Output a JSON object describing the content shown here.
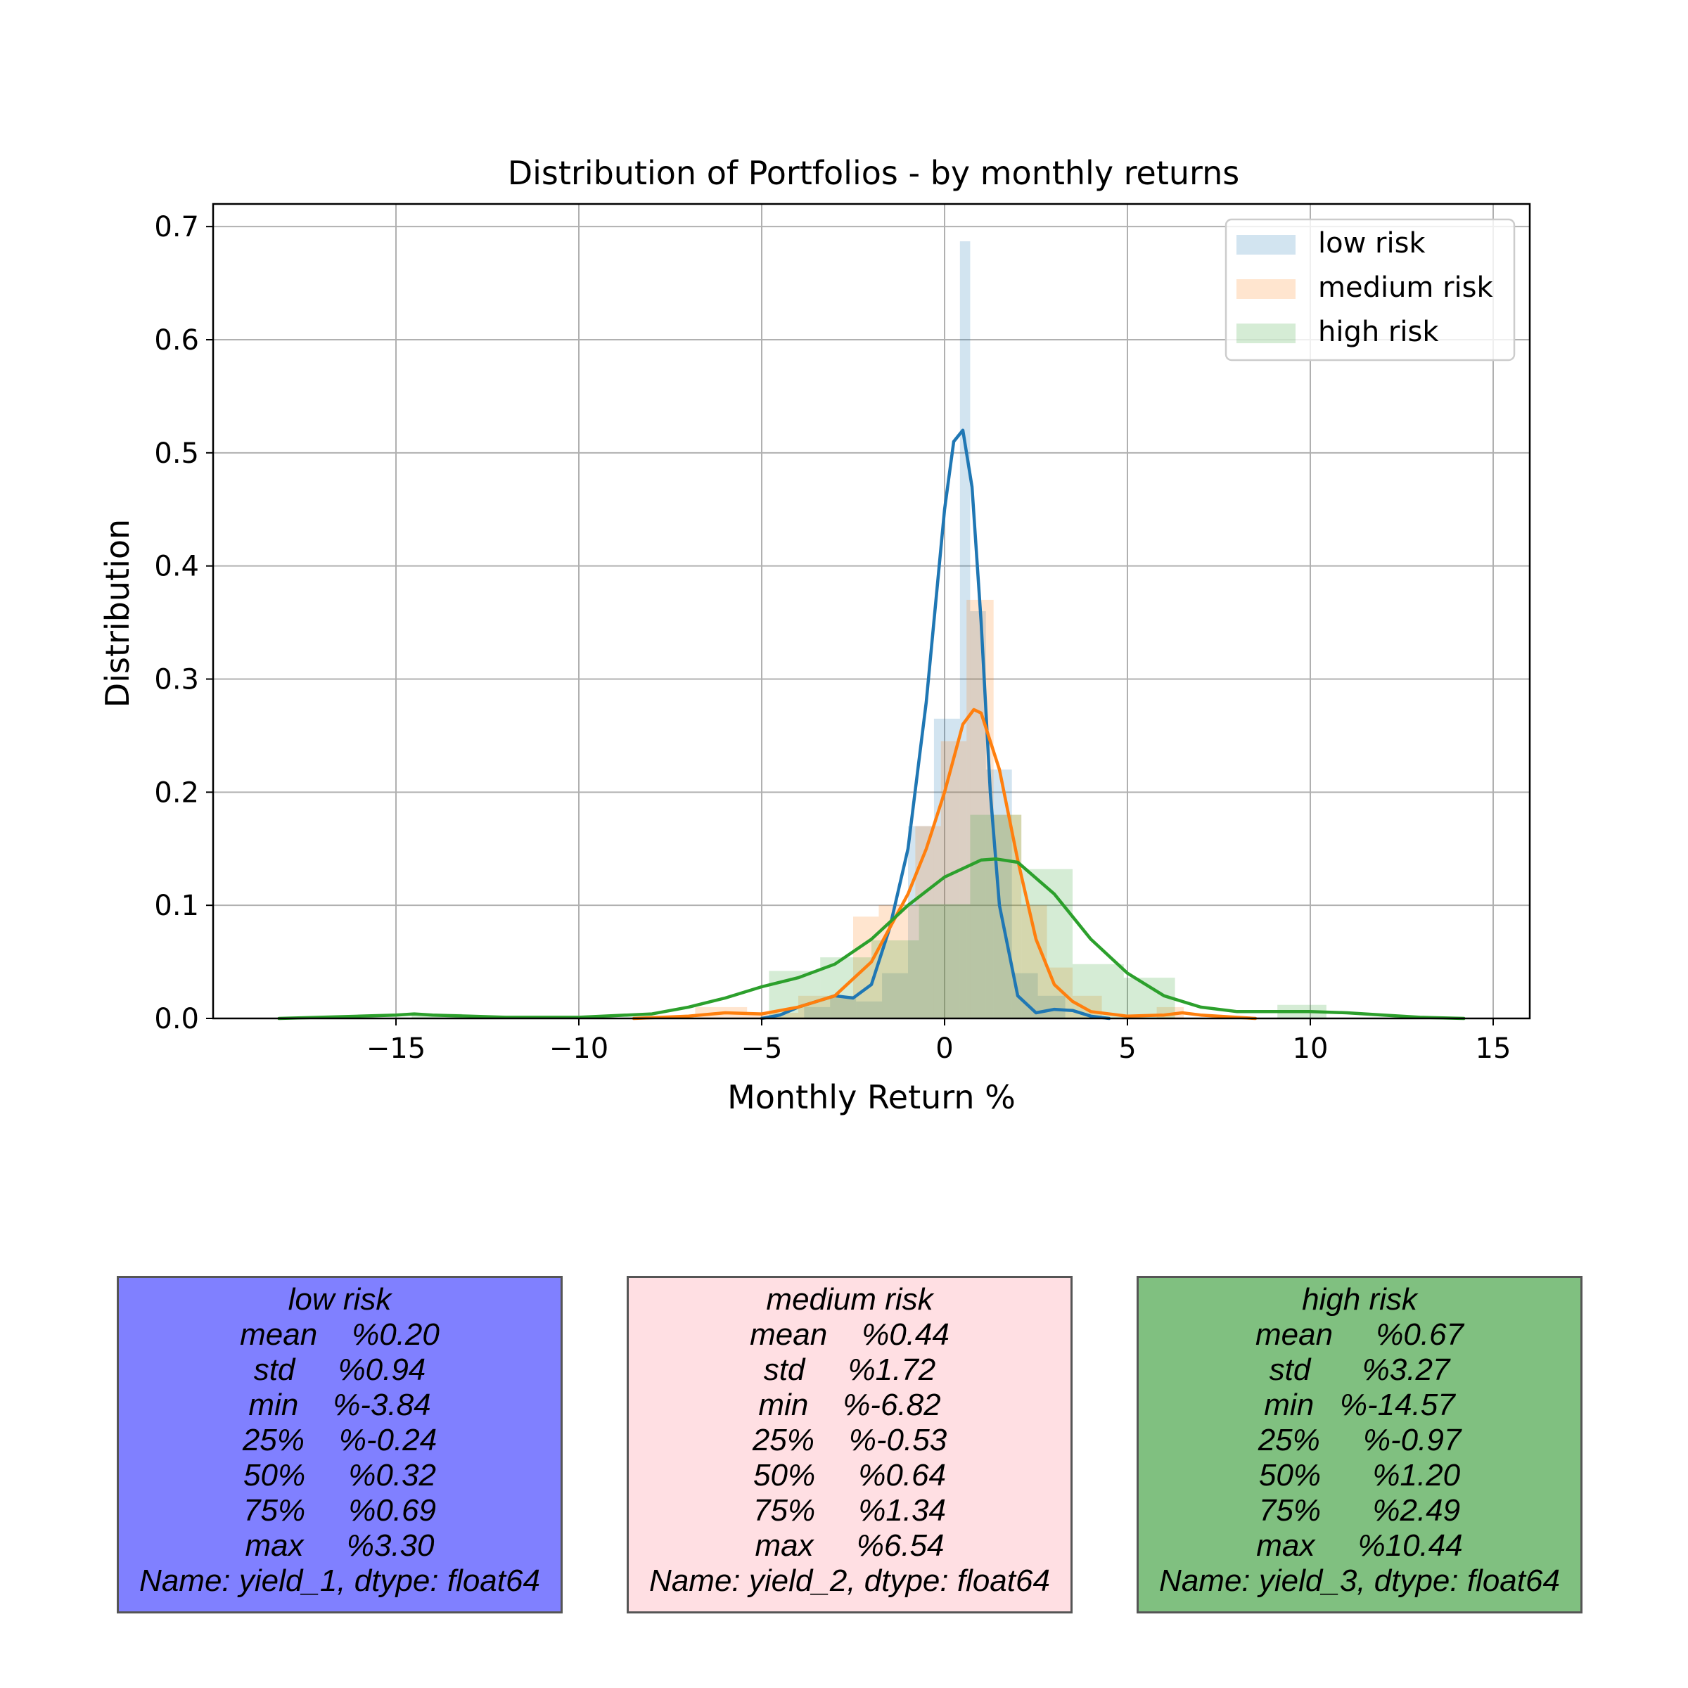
{
  "chart_data": {
    "type": "histogram+kde",
    "title": "Distribution of Portfolios - by monthly returns",
    "xlabel": "Monthly Return %",
    "ylabel": "Distribution",
    "xlim": [
      -20,
      16
    ],
    "ylim": [
      0,
      0.72
    ],
    "xticks": [
      -15,
      -10,
      -5,
      0,
      5,
      10,
      15
    ],
    "xtick_labels": [
      "−15",
      "−10",
      "−5",
      "0",
      "5",
      "10",
      "15"
    ],
    "yticks": [
      0.0,
      0.1,
      0.2,
      0.3,
      0.4,
      0.5,
      0.6,
      0.7
    ],
    "ytick_labels": [
      "0.0",
      "0.1",
      "0.2",
      "0.3",
      "0.4",
      "0.5",
      "0.6",
      "0.7"
    ],
    "grid": true,
    "legend_position": "top-right",
    "series": [
      {
        "name": "low risk",
        "color": "#1f77b4",
        "hist": [
          {
            "x0": -3.84,
            "x1": -3.13,
            "y": 0.01
          },
          {
            "x0": -3.13,
            "x1": -2.42,
            "y": 0.02
          },
          {
            "x0": -2.42,
            "x1": -1.71,
            "y": 0.015
          },
          {
            "x0": -1.71,
            "x1": -1.0,
            "y": 0.04
          },
          {
            "x0": -1.0,
            "x1": -0.29,
            "y": 0.17
          },
          {
            "x0": -0.29,
            "x1": 0.42,
            "y": 0.265
          },
          {
            "x0": 0.42,
            "x1": 0.7,
            "y": 0.687
          },
          {
            "x0": 0.7,
            "x1": 1.13,
            "y": 0.36
          },
          {
            "x0": 1.13,
            "x1": 1.84,
            "y": 0.22
          },
          {
            "x0": 1.84,
            "x1": 2.55,
            "y": 0.04
          },
          {
            "x0": 2.55,
            "x1": 3.3,
            "y": 0.02
          }
        ],
        "kde_x": [
          -5,
          -4.5,
          -4,
          -3.5,
          -3,
          -2.5,
          -2,
          -1.5,
          -1,
          -0.5,
          0,
          0.25,
          0.5,
          0.75,
          1,
          1.25,
          1.5,
          2,
          2.5,
          3,
          3.5,
          4,
          4.5
        ],
        "kde_y": [
          0.0,
          0.003,
          0.01,
          0.015,
          0.02,
          0.018,
          0.03,
          0.08,
          0.15,
          0.28,
          0.45,
          0.51,
          0.52,
          0.47,
          0.35,
          0.2,
          0.1,
          0.02,
          0.005,
          0.008,
          0.007,
          0.002,
          0.0
        ]
      },
      {
        "name": "medium risk",
        "color": "#ff7f0e",
        "hist": [
          {
            "x0": -6.82,
            "x1": -5.4,
            "y": 0.01
          },
          {
            "x0": -5.4,
            "x1": -4.0,
            "y": 0.005
          },
          {
            "x0": -4.0,
            "x1": -2.5,
            "y": 0.02
          },
          {
            "x0": -2.5,
            "x1": -1.8,
            "y": 0.09
          },
          {
            "x0": -1.8,
            "x1": -0.8,
            "y": 0.1
          },
          {
            "x0": -0.8,
            "x1": -0.1,
            "y": 0.17
          },
          {
            "x0": -0.1,
            "x1": 0.6,
            "y": 0.245
          },
          {
            "x0": 0.6,
            "x1": 1.34,
            "y": 0.37
          },
          {
            "x0": 1.34,
            "x1": 2.1,
            "y": 0.18
          },
          {
            "x0": 2.1,
            "x1": 2.8,
            "y": 0.1
          },
          {
            "x0": 2.8,
            "x1": 3.5,
            "y": 0.045
          },
          {
            "x0": 3.5,
            "x1": 4.3,
            "y": 0.02
          },
          {
            "x0": 5.8,
            "x1": 6.54,
            "y": 0.01
          }
        ],
        "kde_x": [
          -8.5,
          -7,
          -6,
          -5,
          -4,
          -3,
          -2,
          -1.5,
          -1,
          -0.5,
          0,
          0.5,
          0.8,
          1,
          1.5,
          2,
          2.5,
          3,
          3.5,
          4,
          5,
          6,
          6.5,
          7,
          8.5
        ],
        "kde_y": [
          0.0,
          0.002,
          0.005,
          0.004,
          0.01,
          0.02,
          0.05,
          0.08,
          0.11,
          0.15,
          0.2,
          0.26,
          0.273,
          0.27,
          0.22,
          0.14,
          0.07,
          0.03,
          0.015,
          0.006,
          0.002,
          0.003,
          0.005,
          0.003,
          0.0
        ]
      },
      {
        "name": "high risk",
        "color": "#2ca02c",
        "hist": [
          {
            "x0": -14.57,
            "x1": -13.2,
            "y": 0.004
          },
          {
            "x0": -4.8,
            "x1": -3.4,
            "y": 0.042
          },
          {
            "x0": -3.4,
            "x1": -2.0,
            "y": 0.054
          },
          {
            "x0": -2.0,
            "x1": -0.7,
            "y": 0.069
          },
          {
            "x0": -0.7,
            "x1": 0.7,
            "y": 0.101
          },
          {
            "x0": 0.7,
            "x1": 2.1,
            "y": 0.18
          },
          {
            "x0": 2.1,
            "x1": 3.5,
            "y": 0.132
          },
          {
            "x0": 3.5,
            "x1": 4.9,
            "y": 0.048
          },
          {
            "x0": 4.9,
            "x1": 6.3,
            "y": 0.036
          },
          {
            "x0": 9.1,
            "x1": 10.44,
            "y": 0.012
          }
        ],
        "kde_x": [
          -18.2,
          -16,
          -15,
          -14.5,
          -14,
          -13,
          -12,
          -10,
          -8,
          -7,
          -6,
          -5,
          -4,
          -3,
          -2,
          -1,
          0,
          1,
          1.4,
          2,
          3,
          4,
          5,
          6,
          7,
          8,
          9,
          10,
          11,
          12,
          13,
          14.2
        ],
        "kde_y": [
          0.0,
          0.002,
          0.003,
          0.004,
          0.003,
          0.002,
          0.001,
          0.001,
          0.004,
          0.01,
          0.018,
          0.028,
          0.036,
          0.048,
          0.07,
          0.1,
          0.125,
          0.14,
          0.141,
          0.138,
          0.11,
          0.07,
          0.04,
          0.02,
          0.01,
          0.006,
          0.006,
          0.006,
          0.005,
          0.003,
          0.001,
          0.0
        ]
      }
    ]
  },
  "stats": [
    {
      "title": "low risk",
      "background": "#8080ff",
      "lines": [
        "mean    %0.20",
        "std     %0.94",
        "min    %-3.84",
        "25%    %-0.24",
        "50%     %0.32",
        "75%     %0.69",
        "max     %3.30",
        "Name: yield_1, dtype: float64"
      ]
    },
    {
      "title": "medium risk",
      "background": "#ffdfe3",
      "lines": [
        "mean    %0.44",
        "std     %1.72",
        "min    %-6.82",
        "25%    %-0.53",
        "50%     %0.64",
        "75%     %1.34",
        "max     %6.54",
        "Name: yield_2, dtype: float64"
      ]
    },
    {
      "title": "high risk",
      "background": "#80c080",
      "lines": [
        "mean     %0.67",
        "std      %3.27",
        "min   %-14.57",
        "25%     %-0.97",
        "50%      %1.20",
        "75%      %2.49",
        "max     %10.44",
        "Name: yield_3, dtype: float64"
      ]
    }
  ]
}
